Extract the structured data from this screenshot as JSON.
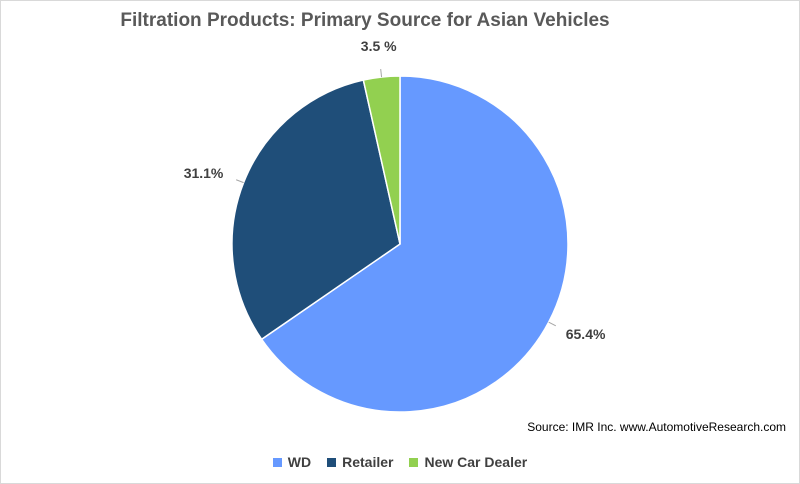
{
  "chart_data": {
    "type": "pie",
    "title": "Filtration Products: Primary Source for Asian Vehicles",
    "categories": [
      "WD",
      "Retailer",
      "New Car Dealer"
    ],
    "values": [
      65.4,
      31.1,
      3.5
    ],
    "data_labels": [
      "65.4%",
      "31.1%",
      "3.5 %"
    ],
    "colors": [
      "#6699ff",
      "#1f4e79",
      "#92d050"
    ],
    "legend_position": "bottom",
    "start_angle_deg": 0,
    "direction": "clockwise"
  },
  "source_note": "Source: IMR Inc. www.AutomotiveResearch.com"
}
